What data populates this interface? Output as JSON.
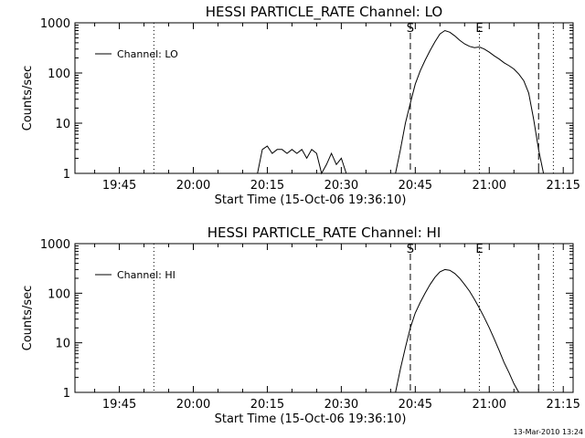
{
  "chart_data": [
    {
      "type": "line",
      "title": "HESSI PARTICLE_RATE Channel: LO",
      "ylabel": "Counts/sec",
      "xlabel": "Start Time (15-Oct-06 19:36:10)",
      "yscale": "log",
      "ylim": [
        1,
        1000
      ],
      "xlim": [
        "19:36",
        "21:17"
      ],
      "xticks": [
        "19:45",
        "20:00",
        "20:15",
        "20:30",
        "20:45",
        "21:00",
        "21:15"
      ],
      "yticks": [
        "1",
        "10",
        "100",
        "1000"
      ],
      "legend": {
        "placement": "top-left",
        "entries": [
          "Channel: LO"
        ]
      },
      "markers": [
        {
          "time": "19:52",
          "style": "dotted",
          "label": ""
        },
        {
          "time": "20:44",
          "style": "dashed",
          "label": "S"
        },
        {
          "time": "20:58",
          "style": "dotted",
          "label": "E"
        },
        {
          "time": "21:10",
          "style": "dashed",
          "label": ""
        },
        {
          "time": "21:13",
          "style": "dotted",
          "label": ""
        }
      ],
      "series": [
        {
          "name": "Channel: LO",
          "x": [
            "20:12",
            "20:13",
            "20:14",
            "20:15",
            "20:16",
            "20:17",
            "20:18",
            "20:19",
            "20:20",
            "20:21",
            "20:22",
            "20:23",
            "20:24",
            "20:25",
            "20:26",
            "20:27",
            "20:28",
            "20:29",
            "20:30",
            "20:31",
            "20:41",
            "20:42",
            "20:43",
            "20:44",
            "20:45",
            "20:46",
            "20:47",
            "20:48",
            "20:49",
            "20:50",
            "20:51",
            "20:52",
            "20:53",
            "20:54",
            "20:55",
            "20:56",
            "20:57",
            "20:58",
            "20:59",
            "21:00",
            "21:01",
            "21:02",
            "21:03",
            "21:04",
            "21:05",
            "21:06",
            "21:07",
            "21:08",
            "21:09",
            "21:10",
            "21:11"
          ],
          "y": [
            1,
            1,
            3,
            3.5,
            2.5,
            3,
            3,
            2.5,
            3,
            2.5,
            3,
            2,
            3,
            2.5,
            1,
            1.5,
            2.5,
            1.5,
            2,
            1,
            1,
            3,
            10,
            25,
            60,
            110,
            180,
            280,
            420,
            600,
            700,
            650,
            550,
            450,
            380,
            340,
            320,
            330,
            300,
            260,
            220,
            190,
            160,
            140,
            120,
            95,
            70,
            40,
            12,
            3,
            1
          ]
        }
      ]
    },
    {
      "type": "line",
      "title": "HESSI PARTICLE_RATE Channel: HI",
      "ylabel": "Counts/sec",
      "xlabel": "Start Time (15-Oct-06 19:36:10)",
      "yscale": "log",
      "ylim": [
        1,
        1000
      ],
      "xlim": [
        "19:36",
        "21:17"
      ],
      "xticks": [
        "19:45",
        "20:00",
        "20:15",
        "20:30",
        "20:45",
        "21:00",
        "21:15"
      ],
      "yticks": [
        "1",
        "10",
        "100",
        "1000"
      ],
      "legend": {
        "placement": "top-left",
        "entries": [
          "Channel: HI"
        ]
      },
      "markers": [
        {
          "time": "19:52",
          "style": "dotted",
          "label": ""
        },
        {
          "time": "20:44",
          "style": "dashed",
          "label": "S"
        },
        {
          "time": "20:58",
          "style": "dotted",
          "label": "E"
        },
        {
          "time": "21:10",
          "style": "dashed",
          "label": ""
        },
        {
          "time": "21:13",
          "style": "dotted",
          "label": ""
        }
      ],
      "series": [
        {
          "name": "Channel: HI",
          "x": [
            "20:41",
            "20:42",
            "20:43",
            "20:44",
            "20:45",
            "20:46",
            "20:47",
            "20:48",
            "20:49",
            "20:50",
            "20:51",
            "20:52",
            "20:53",
            "20:54",
            "20:55",
            "20:56",
            "20:57",
            "20:58",
            "20:59",
            "21:00",
            "21:01",
            "21:02",
            "21:03",
            "21:04",
            "21:05",
            "21:06"
          ],
          "y": [
            1,
            3,
            8,
            20,
            40,
            65,
            100,
            150,
            210,
            270,
            300,
            290,
            250,
            200,
            150,
            110,
            75,
            50,
            32,
            20,
            12,
            7,
            4,
            2.5,
            1.5,
            1
          ]
        }
      ]
    }
  ],
  "footer": {
    "timestamp": "13-Mar-2010 13:24"
  }
}
